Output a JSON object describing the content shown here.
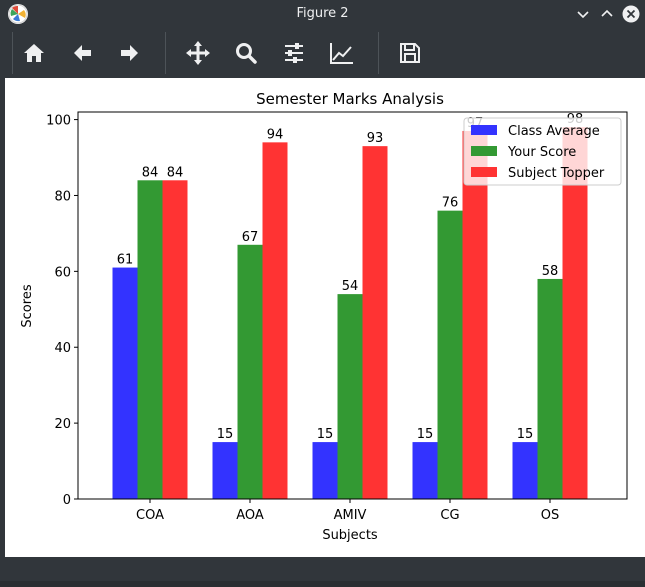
{
  "window": {
    "title": "Figure 2"
  },
  "toolbar": {
    "buttons": [
      {
        "name": "home-button",
        "icon": "home-icon"
      },
      {
        "name": "back-button",
        "icon": "arrow-left-icon"
      },
      {
        "name": "forward-button",
        "icon": "arrow-right-icon"
      },
      {
        "name": "pan-button",
        "icon": "move-icon"
      },
      {
        "name": "zoom-button",
        "icon": "magnifier-icon"
      },
      {
        "name": "subplots-button",
        "icon": "sliders-icon"
      },
      {
        "name": "customize-button",
        "icon": "line-chart-icon"
      },
      {
        "name": "save-button",
        "icon": "floppy-disk-icon"
      }
    ]
  },
  "colors": {
    "chrome_bg": "#31363b",
    "chrome_fg": "#eff0f1",
    "class_average": "#3333ff",
    "your_score": "#339933",
    "subject_topper": "#ff3333"
  },
  "chart_data": {
    "type": "bar",
    "title": "Semester Marks Analysis",
    "xlabel": "Subjects",
    "ylabel": "Scores",
    "categories": [
      "COA",
      "AOA",
      "AMIV",
      "CG",
      "OS"
    ],
    "ylim": [
      0,
      102
    ],
    "yticks": [
      0,
      20,
      40,
      60,
      80,
      100
    ],
    "grid": false,
    "legend_position": "top-right",
    "series": [
      {
        "name": "Class Average",
        "values": [
          61,
          15,
          15,
          15,
          15
        ],
        "color": "#3333ff"
      },
      {
        "name": "Your Score",
        "values": [
          84,
          67,
          54,
          76,
          58
        ],
        "color": "#339933"
      },
      {
        "name": "Subject Topper",
        "values": [
          84,
          94,
          93,
          97,
          98
        ],
        "color": "#ff3333"
      }
    ]
  }
}
